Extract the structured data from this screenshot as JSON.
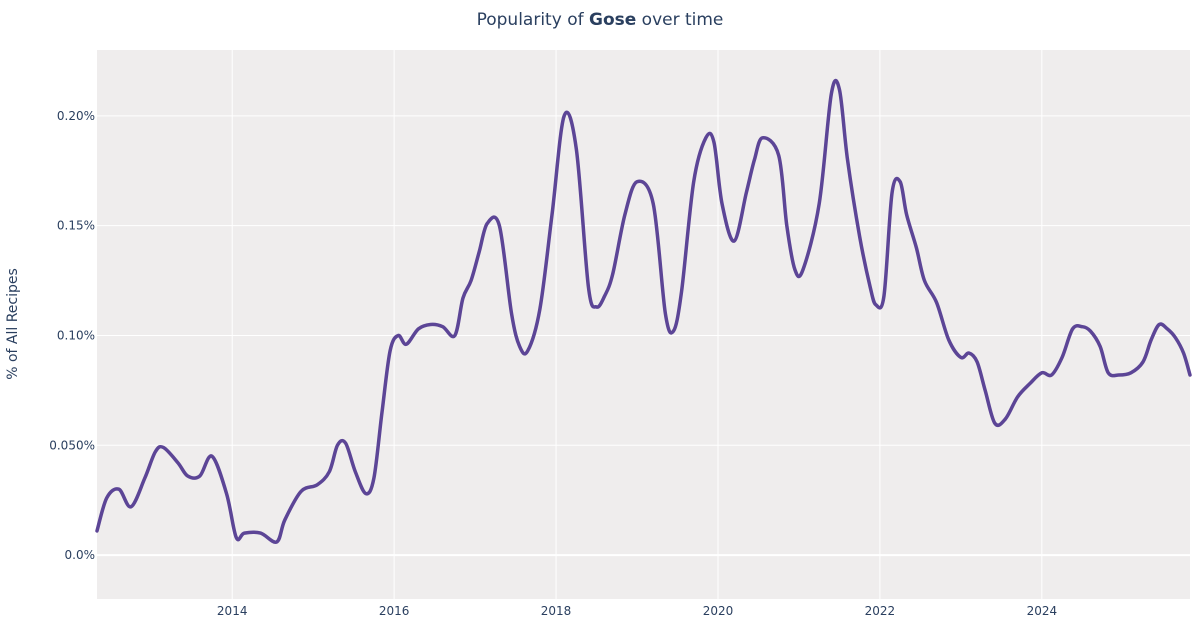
{
  "chart_data": {
    "type": "line",
    "title_prefix": "Popularity of ",
    "title_bold": "Gose",
    "title_suffix": " over time",
    "xlabel": "",
    "ylabel": "% of All Recipes",
    "xlim": [
      2012.33,
      2025.83
    ],
    "ylim": [
      -0.0002,
      0.0023
    ],
    "x_ticks": [
      2014,
      2016,
      2018,
      2020,
      2022,
      2024
    ],
    "y_ticks": [
      0,
      0.0005,
      0.001,
      0.0015,
      0.002
    ],
    "y_tick_labels": [
      "0.0%",
      "0.050%",
      "0.10%",
      "0.15%",
      "0.20%"
    ],
    "grid": true,
    "line_color": "#5c4596",
    "plot_bg": "#efeded",
    "series": [
      {
        "name": "Gose",
        "x": [
          2012.33,
          2012.45,
          2012.6,
          2012.75,
          2012.92,
          2013.05,
          2013.15,
          2013.33,
          2013.45,
          2013.6,
          2013.75,
          2013.93,
          2014.05,
          2014.15,
          2014.35,
          2014.55,
          2014.65,
          2014.85,
          2015.05,
          2015.2,
          2015.3,
          2015.4,
          2015.52,
          2015.65,
          2015.75,
          2015.85,
          2015.95,
          2016.05,
          2016.15,
          2016.3,
          2016.45,
          2016.6,
          2016.75,
          2016.85,
          2016.95,
          2017.05,
          2017.15,
          2017.3,
          2017.45,
          2017.55,
          2017.65,
          2017.8,
          2017.95,
          2018.1,
          2018.25,
          2018.4,
          2018.5,
          2018.6,
          2018.7,
          2018.85,
          2019.0,
          2019.2,
          2019.35,
          2019.45,
          2019.55,
          2019.7,
          2019.85,
          2019.95,
          2020.05,
          2020.2,
          2020.35,
          2020.45,
          2020.55,
          2020.75,
          2020.85,
          2020.95,
          2021.05,
          2021.25,
          2021.4,
          2021.5,
          2021.6,
          2021.75,
          2021.88,
          2021.95,
          2022.05,
          2022.15,
          2022.25,
          2022.33,
          2022.45,
          2022.55,
          2022.7,
          2022.85,
          2023.0,
          2023.1,
          2023.2,
          2023.3,
          2023.42,
          2023.55,
          2023.7,
          2023.85,
          2024.0,
          2024.12,
          2024.25,
          2024.38,
          2024.5,
          2024.6,
          2024.72,
          2024.82,
          2024.95,
          2025.1,
          2025.25,
          2025.35,
          2025.45,
          2025.55,
          2025.65,
          2025.75,
          2025.83
        ],
        "values": [
          0.00011,
          0.00026,
          0.0003,
          0.00022,
          0.00035,
          0.00047,
          0.00049,
          0.00042,
          0.00036,
          0.00036,
          0.00045,
          0.00028,
          8e-05,
          0.0001,
          0.0001,
          6e-05,
          0.00016,
          0.00029,
          0.00032,
          0.00038,
          0.0005,
          0.00051,
          0.00038,
          0.00028,
          0.00035,
          0.00065,
          0.00093,
          0.001,
          0.00096,
          0.00103,
          0.00105,
          0.00104,
          0.001,
          0.00117,
          0.00125,
          0.00138,
          0.00151,
          0.0015,
          0.0011,
          0.00095,
          0.00093,
          0.00112,
          0.00155,
          0.002,
          0.00185,
          0.00122,
          0.00113,
          0.00118,
          0.00128,
          0.00155,
          0.0017,
          0.0016,
          0.0011,
          0.00102,
          0.0012,
          0.0017,
          0.0019,
          0.00188,
          0.0016,
          0.00143,
          0.00165,
          0.0018,
          0.0019,
          0.00182,
          0.0015,
          0.0013,
          0.0013,
          0.0016,
          0.0021,
          0.00212,
          0.0018,
          0.00145,
          0.00122,
          0.00114,
          0.00118,
          0.00165,
          0.0017,
          0.00155,
          0.0014,
          0.00125,
          0.00115,
          0.00098,
          0.0009,
          0.00092,
          0.00088,
          0.00075,
          0.0006,
          0.00062,
          0.00072,
          0.00078,
          0.00083,
          0.00082,
          0.0009,
          0.00103,
          0.00104,
          0.00102,
          0.00095,
          0.00083,
          0.00082,
          0.00083,
          0.00088,
          0.00098,
          0.00105,
          0.00103,
          0.00099,
          0.00092,
          0.00082
        ]
      }
    ]
  }
}
